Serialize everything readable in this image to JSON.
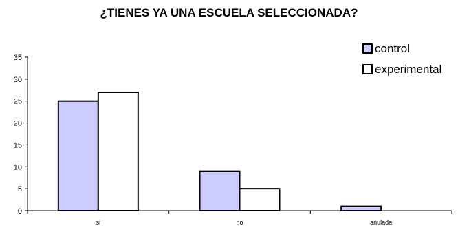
{
  "chart_data": {
    "type": "bar",
    "title": "¿TIENES YA UNA ESCUELA SELECCIONADA?",
    "xlabel": "",
    "ylabel": "",
    "categories": [
      "si",
      "no",
      "anulada"
    ],
    "series": [
      {
        "name": "control",
        "values": [
          25,
          9,
          1
        ],
        "color": "#ccccff"
      },
      {
        "name": "experimental",
        "values": [
          27,
          5,
          0
        ],
        "color": "#ffffff"
      }
    ],
    "ylim": [
      0,
      35
    ],
    "yticks": [
      0,
      5,
      10,
      15,
      20,
      25,
      30,
      35
    ],
    "grid": false,
    "legend": "top-right"
  }
}
